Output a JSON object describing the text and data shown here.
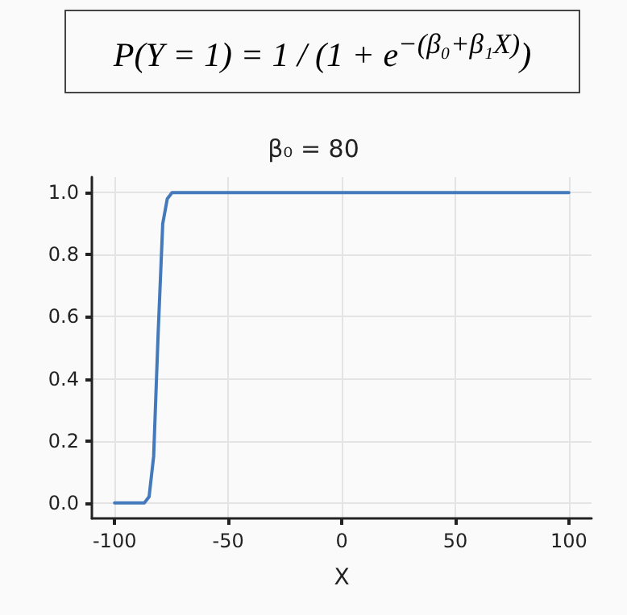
{
  "chart_data": {
    "type": "line",
    "title": "β₀ = 80",
    "xlabel": "X",
    "annotations": [
      "P(Y = 1) = 1 / (1 + e$^{−(β₀+β₁X)}$)"
    ],
    "x": [
      -100,
      -96,
      -92,
      -88,
      -86.9,
      -84.8,
      -82.8,
      -80.8,
      -78.8,
      -76.8,
      -74.7,
      -70,
      -50,
      0,
      50,
      100
    ],
    "series": [
      {
        "color": "#4479bb",
        "values": [
          0,
          0,
          0,
          0,
          0.0,
          0.02,
          0.15,
          0.55,
          0.9,
          0.98,
          1,
          1,
          1,
          1,
          1,
          1
        ]
      }
    ],
    "xlim": [
      -110,
      110
    ],
    "ylim": [
      -0.05,
      1.05
    ],
    "xticks": [
      -100,
      -50,
      0,
      50,
      100
    ],
    "yticks": [
      {
        "value": 0,
        "label": "0.0"
      },
      {
        "value": 0.2,
        "label": "0.2"
      },
      {
        "value": 0.4,
        "label": "0.4"
      },
      {
        "value": 0.6,
        "label": "0.6"
      },
      {
        "value": 0.8,
        "label": "0.8"
      },
      {
        "value": 1,
        "label": "1.0"
      }
    ],
    "grid": true,
    "marker": "none",
    "line_style": "solid"
  }
}
